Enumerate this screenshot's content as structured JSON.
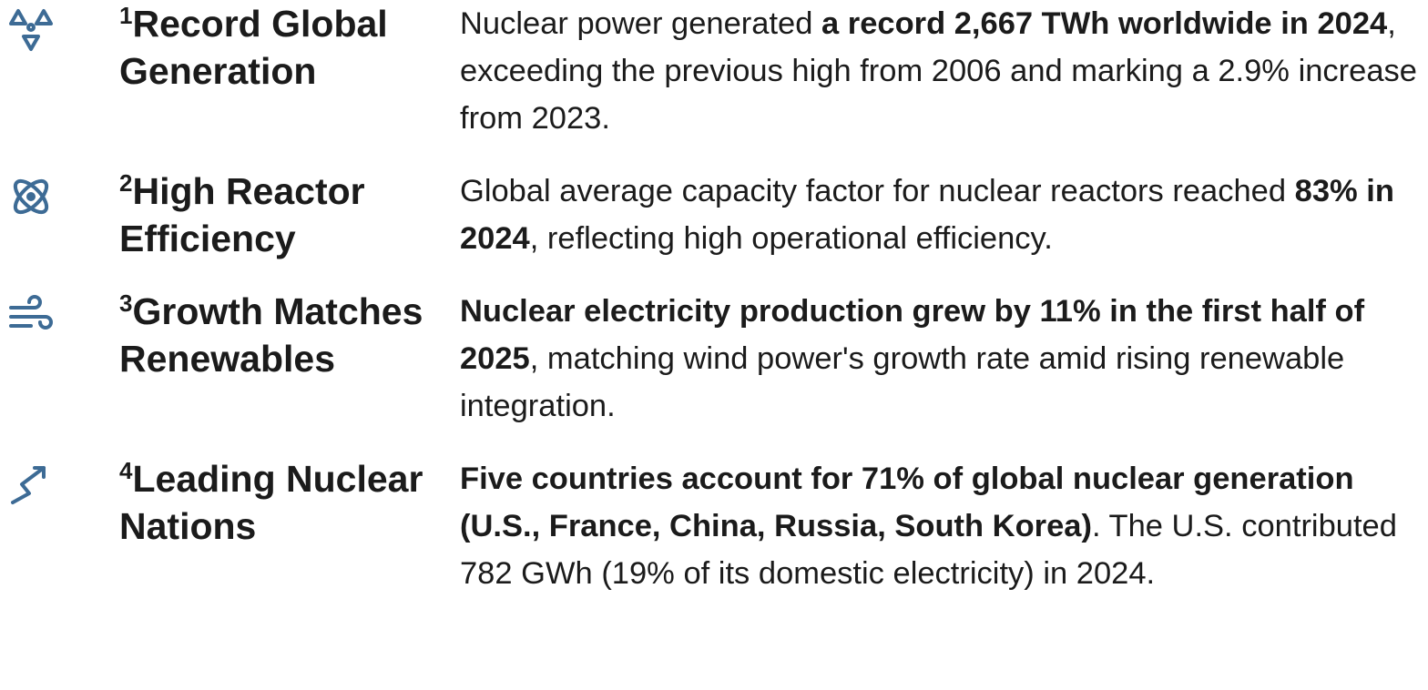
{
  "items": [
    {
      "number": "1",
      "title": "Record Global Generation",
      "icon": "radiation",
      "body": [
        {
          "text": "Nuclear power generated ",
          "bold": false
        },
        {
          "text": "a record 2,667 TWh worldwide in 2024",
          "bold": true
        },
        {
          "text": ", exceeding the previous high from 2006 and marking a 2.9% increase from 2023.",
          "bold": false
        }
      ]
    },
    {
      "number": "2",
      "title": "High Reactor Efficiency",
      "icon": "atom",
      "body": [
        {
          "text": "Global average capacity factor for nuclear reactors reached ",
          "bold": false
        },
        {
          "text": "83% in 2024",
          "bold": true
        },
        {
          "text": ", reflecting high operational efficiency.",
          "bold": false
        }
      ]
    },
    {
      "number": "3",
      "title": "Growth Matches Renewables",
      "icon": "wind",
      "body": [
        {
          "text": "Nuclear electricity production grew by 11% in the first half of 2025",
          "bold": true
        },
        {
          "text": ", matching wind power's growth rate amid rising renewable integration.",
          "bold": false
        }
      ]
    },
    {
      "number": "4",
      "title": "Leading Nuclear Nations",
      "icon": "trend",
      "body": [
        {
          "text": "Five countries account for 71% of global nuclear generation (U.S., France, China, Russia, South Korea)",
          "bold": true
        },
        {
          "text": ". The U.S. contributed 782 GWh (19% of its domestic electricity) in 2024.",
          "bold": false
        }
      ]
    }
  ]
}
